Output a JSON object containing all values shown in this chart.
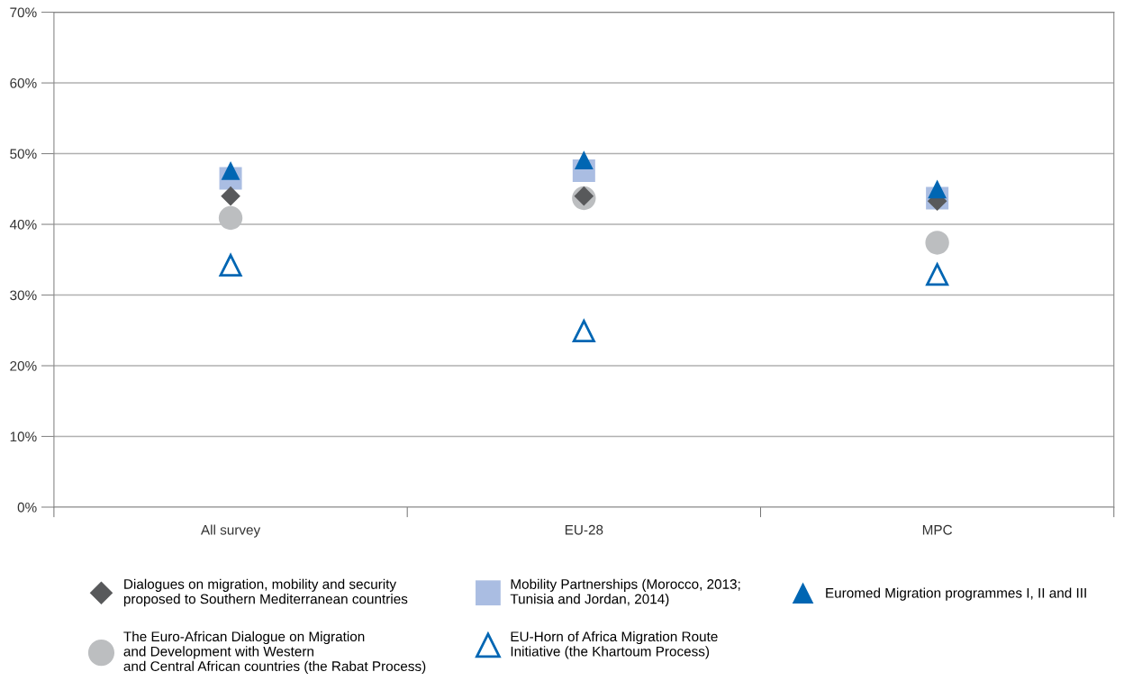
{
  "chart_data": {
    "type": "scatter",
    "categories": [
      "All survey",
      "EU-28",
      "MPC"
    ],
    "series": [
      {
        "name": "Dialogues on migration, mobility and security\nproposed to Southern Mediterranean countries",
        "color": "#58595b",
        "marker": "diamond",
        "values": [
          44,
          44,
          43.3
        ]
      },
      {
        "name": "Mobility Partnerships (Morocco, 2013;\nTunisia and Jordan, 2014)",
        "color": "#aabde2",
        "marker": "square",
        "values": [
          46.5,
          47.6,
          43.7
        ]
      },
      {
        "name": "Euromed Migration programmes I, II and III",
        "color": "#0066b3",
        "marker": "triangle",
        "values": [
          47.6,
          49.1,
          45
        ]
      },
      {
        "name": "The Euro-African Dialogue on Migration\nand Development with Western\nand Central African countries (the Rabat Process)",
        "color": "#bcbec0",
        "marker": "circle",
        "values": [
          40.9,
          43.7,
          37.4
        ]
      },
      {
        "name": "EU-Horn of Africa Migration Route\nInitiative (the Khartoum Process)",
        "color": "#0066b3",
        "marker": "triangle-open",
        "values": [
          34.2,
          24.9,
          32.9
        ]
      }
    ],
    "ylim": [
      0,
      70
    ],
    "yticks": [
      {
        "value": 0,
        "label": "0%"
      },
      {
        "value": 10,
        "label": "10%"
      },
      {
        "value": 20,
        "label": "20%"
      },
      {
        "value": 30,
        "label": "30%"
      },
      {
        "value": 40,
        "label": "40%"
      },
      {
        "value": 50,
        "label": "50%"
      },
      {
        "value": 60,
        "label": "60%"
      },
      {
        "value": 70,
        "label": "70%"
      }
    ],
    "grid": "y",
    "legend": "bottom"
  }
}
